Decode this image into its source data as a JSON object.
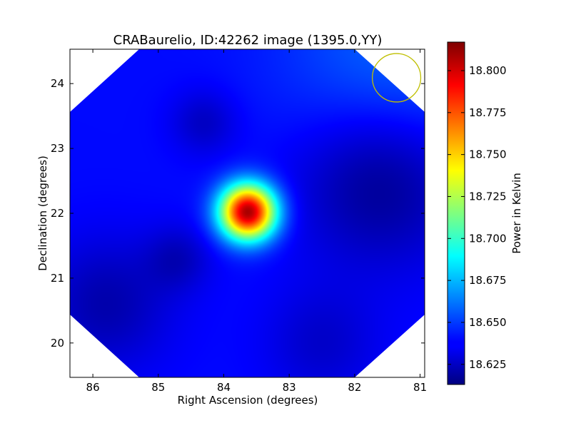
{
  "chart_data": {
    "type": "heatmap",
    "title": "CRABaurelio, ID:42262 image (1395.0,YY)",
    "xlabel": "Right Ascension (degrees)",
    "ylabel": "Declination (degrees)",
    "colorbar_label": "Power in Kelvin",
    "colormap": "jet",
    "x_inverted": true,
    "xlim": [
      86.35,
      80.93
    ],
    "ylim": [
      19.47,
      24.53
    ],
    "x_ticks": [
      86,
      85,
      84,
      83,
      82,
      81
    ],
    "x_tick_labels": [
      "86",
      "85",
      "84",
      "83",
      "82",
      "81"
    ],
    "y_ticks": [
      20,
      21,
      22,
      23,
      24
    ],
    "y_tick_labels": [
      "20",
      "21",
      "22",
      "23",
      "24"
    ],
    "color_range": [
      18.613,
      18.817
    ],
    "colorbar_ticks": [
      18.625,
      18.65,
      18.675,
      18.7,
      18.725,
      18.75,
      18.775,
      18.8
    ],
    "colorbar_tick_labels": [
      "18.625",
      "18.650",
      "18.675",
      "18.700",
      "18.725",
      "18.750",
      "18.775",
      "18.800"
    ],
    "background_level": 18.64,
    "hotspots": [
      {
        "ra": 83.63,
        "dec": 22.02,
        "peak": 18.81,
        "sigma_deg": 0.3
      },
      {
        "ra": 81.4,
        "dec": 24.3,
        "peak": 18.659,
        "sigma_deg": 1.2
      },
      {
        "ra": 81.6,
        "dec": 22.5,
        "peak": 18.614,
        "sigma_deg": 0.9
      },
      {
        "ra": 84.3,
        "dec": 23.4,
        "peak": 18.626,
        "sigma_deg": 0.35
      },
      {
        "ra": 84.7,
        "dec": 21.3,
        "peak": 18.626,
        "sigma_deg": 0.35
      },
      {
        "ra": 85.8,
        "dec": 20.6,
        "peak": 18.622,
        "sigma_deg": 0.7
      },
      {
        "ra": 82.5,
        "dec": 20.0,
        "peak": 18.628,
        "sigma_deg": 0.6
      }
    ],
    "beam_circle": {
      "ra": 81.36,
      "dec": 24.09,
      "radius_deg": 0.37,
      "color": "#bfbf00"
    },
    "footprint": "octagon"
  }
}
